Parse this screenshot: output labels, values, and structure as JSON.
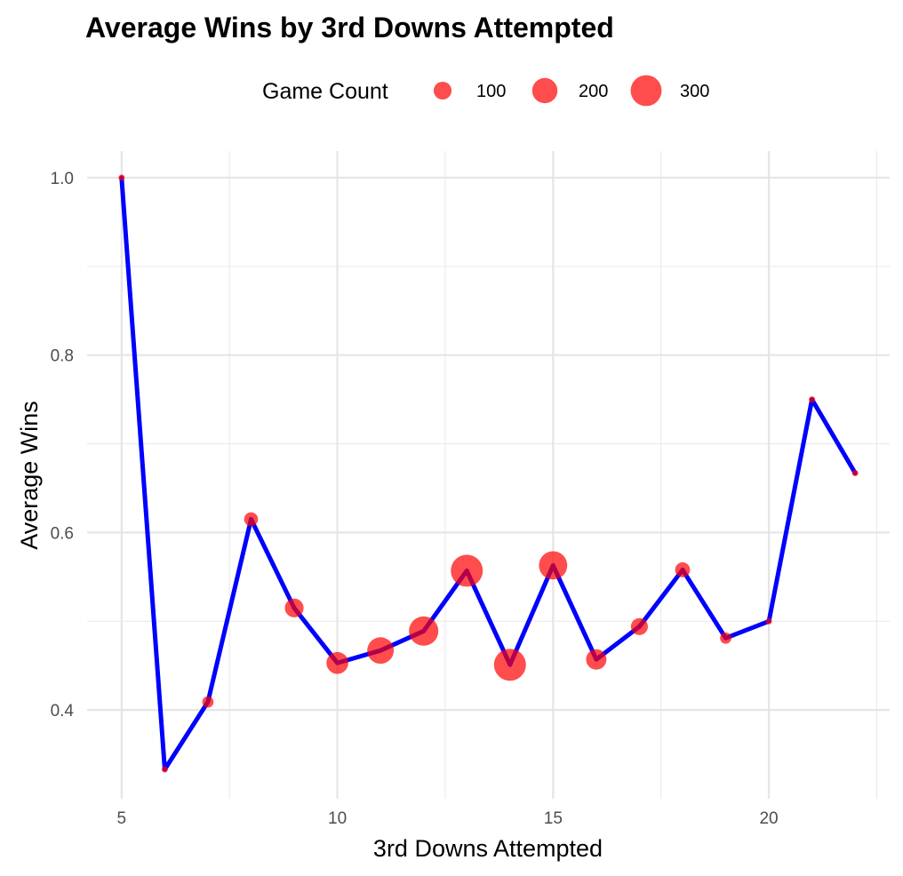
{
  "chart_data": {
    "type": "line",
    "title": "Average Wins by 3rd Downs Attempted",
    "xlabel": "3rd Downs Attempted",
    "ylabel": "Average Wins",
    "xlim": [
      4.2,
      22.8
    ],
    "ylim": [
      0.3,
      1.03
    ],
    "x_ticks": [
      5,
      10,
      15,
      20
    ],
    "x_tick_labels": [
      "5",
      "10",
      "15",
      "20"
    ],
    "y_ticks": [
      0.4,
      0.6,
      0.8,
      1.0
    ],
    "y_tick_labels": [
      "0.4",
      "0.6",
      "0.8",
      "1.0"
    ],
    "x_minor_ticks": [
      7.5,
      12.5,
      17.5,
      22.5
    ],
    "y_minor_ticks": [
      0.5,
      0.7,
      0.9
    ],
    "grid": true,
    "legend": {
      "title": "Game Count",
      "placement": "top",
      "entries": [
        {
          "label": "100",
          "value": 100
        },
        {
          "label": "200",
          "value": 200
        },
        {
          "label": "300",
          "value": 300
        }
      ]
    },
    "line_color": "#0000ff",
    "point_color": "#ff0000",
    "series": [
      {
        "x": [
          5,
          6,
          7,
          8,
          9,
          10,
          11,
          12,
          13,
          14,
          15,
          16,
          17,
          18,
          19,
          20,
          21,
          22
        ],
        "y": [
          1.0,
          0.333,
          0.409,
          0.615,
          0.515,
          0.453,
          0.467,
          0.489,
          0.557,
          0.451,
          0.563,
          0.457,
          0.494,
          0.558,
          0.481,
          0.5,
          0.75,
          0.667
        ],
        "size": [
          1,
          3,
          40,
          60,
          110,
          150,
          220,
          270,
          320,
          320,
          250,
          130,
          90,
          70,
          40,
          10,
          3,
          1
        ]
      }
    ]
  }
}
